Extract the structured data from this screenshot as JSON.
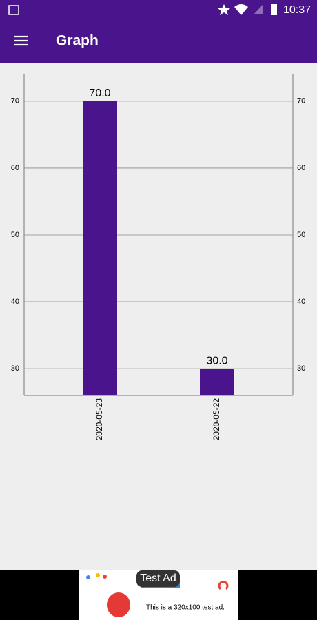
{
  "status_bar": {
    "time": "10:37"
  },
  "app_bar": {
    "title": "Graph"
  },
  "chart_data": {
    "type": "bar",
    "categories": [
      "2020-05-23",
      "2020-05-22"
    ],
    "values": [
      70,
      30
    ],
    "value_labels": [
      "70.0",
      "30.0"
    ],
    "color": "#4a148c",
    "ylim": [
      26,
      74
    ],
    "yticks": [
      30,
      40,
      50,
      60,
      70
    ],
    "grid": true
  },
  "ad": {
    "badge": "Test Ad",
    "text": "This is a 320x100 test ad."
  }
}
